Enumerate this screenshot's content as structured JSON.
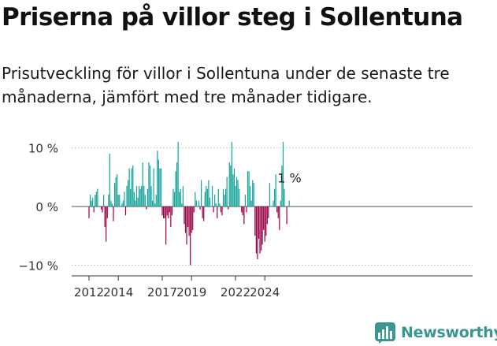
{
  "header": {
    "title": "Priserna på villor steg i Sollentuna",
    "subtitle": "Prisutveckling för villor i Sollentuna under de senaste tre månaderna, jämfört med tre månader tidigare."
  },
  "brand": {
    "name": "Newsworthy"
  },
  "colors": {
    "positive": "#14a39a",
    "negative": "#990045",
    "axis": "#333333",
    "brand": "#3a9690"
  },
  "chart_data": {
    "type": "bar",
    "title": "Priserna på villor steg i Sollentuna",
    "xlabel": "",
    "ylabel": "",
    "ylim": [
      -11,
      12
    ],
    "y_ticks": [
      {
        "value": 10,
        "label": "10 %"
      },
      {
        "value": 0,
        "label": "0 %"
      },
      {
        "value": -10,
        "label": "−10 %"
      }
    ],
    "x_ticks": [
      {
        "year": 2012,
        "label": "2012"
      },
      {
        "year": 2014,
        "label": "2014"
      },
      {
        "year": 2017,
        "label": "2017"
      },
      {
        "year": 2019,
        "label": "2019"
      },
      {
        "year": 2022,
        "label": "2022"
      },
      {
        "year": 2024,
        "label": "2024"
      }
    ],
    "start": "2012-01",
    "end": "2025-01",
    "annotation": {
      "label": "1 %",
      "value": 1
    },
    "values": [
      -2,
      2,
      1,
      1.5,
      -1,
      2,
      2.5,
      3,
      0,
      0,
      -0.5,
      -1,
      2,
      -3.5,
      -6,
      -2,
      2,
      9,
      1,
      0.5,
      -2.5,
      4,
      5,
      5.5,
      2,
      2,
      0,
      0.5,
      1,
      2.5,
      -1.5,
      3.5,
      4.5,
      6.5,
      3,
      6.5,
      7,
      2.5,
      1,
      3.5,
      1.5,
      3.5,
      3,
      3.5,
      7.5,
      3.5,
      2,
      -0.5,
      3,
      7.5,
      7,
      3.5,
      1,
      6.5,
      0.5,
      2,
      9.5,
      8,
      6.5,
      6.5,
      -1.5,
      -2,
      -2,
      -6.5,
      -1.5,
      -2,
      -1,
      -3.5,
      -1.5,
      3,
      2.5,
      6,
      7.5,
      11,
      2.5,
      3,
      0.5,
      3.5,
      -3,
      -4.5,
      -6.5,
      -3.5,
      -5,
      -10,
      -4.5,
      -4,
      -1,
      2.5,
      1,
      0,
      1,
      -0.5,
      4.5,
      -2,
      -2.5,
      2.5,
      3.5,
      3,
      4.5,
      1.5,
      0,
      3.5,
      -1,
      2,
      0.5,
      -2,
      3,
      0.5,
      -1,
      -1.5,
      3,
      2,
      3,
      5,
      -0.5,
      7.5,
      7,
      11,
      5.5,
      6.5,
      3.5,
      5,
      4.5,
      3,
      0,
      -1,
      -1.5,
      -3,
      2,
      -1,
      6,
      6,
      3.5,
      1,
      4.5,
      4,
      -5,
      -8,
      -9,
      -5.5,
      -8,
      -7.5,
      -6.5,
      -4,
      -6,
      -5,
      -3,
      -2,
      4,
      0,
      0,
      1,
      3,
      5.5,
      -1,
      -2,
      -4,
      1,
      7,
      11,
      3,
      0,
      -3,
      0,
      1
    ]
  }
}
